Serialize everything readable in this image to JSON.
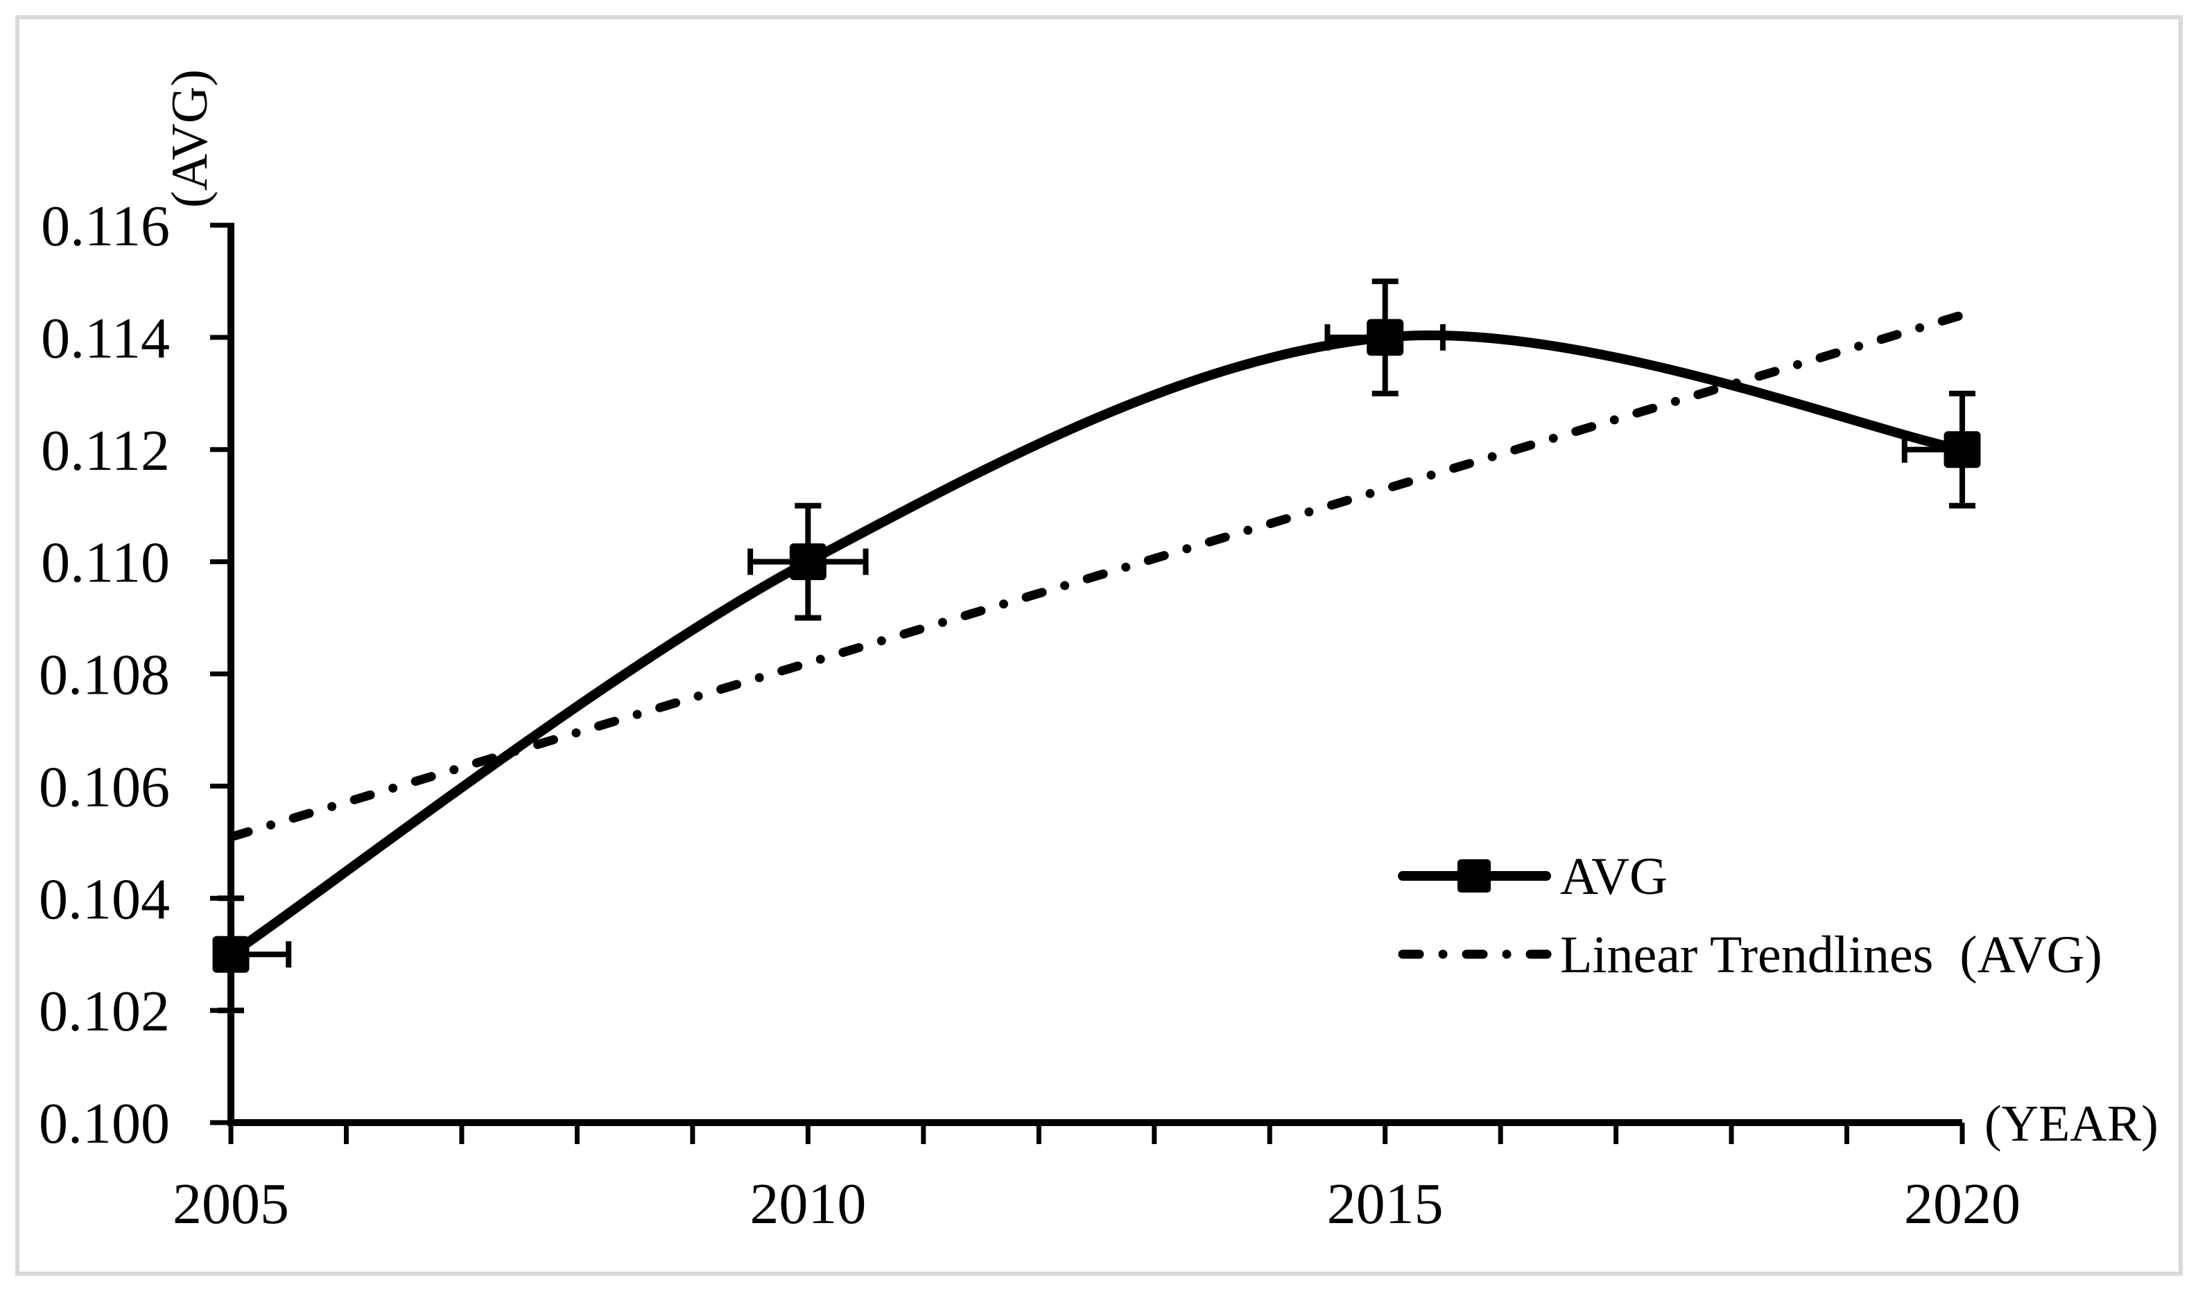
{
  "figure": {
    "background_color": "#ffffff",
    "frame_color": "#d9d9d9",
    "ink_color": "#000000"
  },
  "y_axis": {
    "title": "(AVG)",
    "min": 0.1,
    "max": 0.116,
    "tick_step": 0.002,
    "tick_labels": [
      "0.116",
      "0.114",
      "0.112",
      "0.110",
      "0.108",
      "0.106",
      "0.104",
      "0.102",
      "0.100"
    ]
  },
  "x_axis": {
    "title": "(YEAR)",
    "min": 2005,
    "max": 2020,
    "minor_tick_step": 1,
    "label_step": 5,
    "tick_labels": [
      "2005",
      "2010",
      "2015",
      "2020"
    ]
  },
  "legend": {
    "series1_label": "AVG",
    "series2_label": "Linear Trendlines（AVG）"
  },
  "chart_data": {
    "type": "line",
    "title": "",
    "xlabel": "(YEAR)",
    "ylabel": "(AVG)",
    "x": [
      2005,
      2010,
      2015,
      2020
    ],
    "series": [
      {
        "name": "AVG",
        "values": [
          0.103,
          0.11,
          0.114,
          0.112
        ],
        "marker": "filled-square",
        "line_style": "solid-smooth",
        "y_error": 0.001,
        "x_error": 0.5
      },
      {
        "name": "Linear Trendlines（AVG）",
        "line_style": "dash-dot",
        "trendline": true,
        "x": [
          2005,
          2020
        ],
        "values": [
          0.1051,
          0.1144
        ]
      }
    ],
    "ylim": [
      0.1,
      0.116
    ],
    "xlim": [
      2005,
      2020
    ],
    "grid": false,
    "legend_position": "inside-lower-right"
  }
}
